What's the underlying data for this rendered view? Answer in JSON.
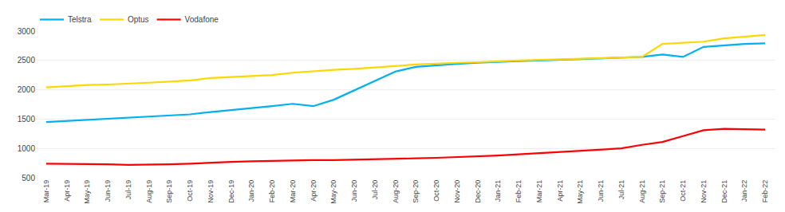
{
  "chart_data": {
    "type": "line",
    "categories": [
      "Mar-19",
      "Apr-19",
      "May-19",
      "Jun-19",
      "Jul-19",
      "Aug-19",
      "Sep-19",
      "Oct-19",
      "Nov-19",
      "Dec-19",
      "Jan-20",
      "Feb-20",
      "Mar-20",
      "Apr-20",
      "May-20",
      "Jun-20",
      "Jul-20",
      "Aug-20",
      "Sep-20",
      "Oct-20",
      "Nov-20",
      "Dec-20",
      "Jan-21",
      "Feb-21",
      "Mar-21",
      "Apr-21",
      "May-21",
      "Jun-21",
      "Jul-21",
      "Aug-21",
      "Sep-21",
      "Oct-21",
      "Nov-21",
      "Dec-21",
      "Jan-22",
      "Feb-22"
    ],
    "series": [
      {
        "name": "Telstra",
        "color": "#00B0F0",
        "values": [
          1450,
          1470,
          1490,
          1500,
          1520,
          1540,
          1560,
          1580,
          1620,
          1650,
          1680,
          1720,
          1760,
          1720,
          1830,
          1990,
          2160,
          2310,
          2390,
          2420,
          2440,
          2460,
          2480,
          2490,
          2500,
          2510,
          2520,
          2530,
          2545,
          2560,
          2600,
          2560,
          2730,
          2760,
          2780,
          2790
        ]
      },
      {
        "name": "Optus",
        "color": "#FFD700",
        "values": [
          2040,
          2060,
          2080,
          2090,
          2100,
          2120,
          2140,
          2160,
          2200,
          2220,
          2230,
          2250,
          2290,
          2320,
          2340,
          2355,
          2375,
          2405,
          2430,
          2450,
          2460,
          2470,
          2490,
          2500,
          2510,
          2520,
          2530,
          2540,
          2550,
          2560,
          2780,
          2800,
          2820,
          2875,
          2905,
          2935
        ]
      },
      {
        "name": "Vodafone",
        "color": "#FF0000",
        "values": [
          740,
          740,
          740,
          730,
          720,
          720,
          730,
          740,
          760,
          770,
          780,
          790,
          800,
          800,
          800,
          805,
          810,
          820,
          830,
          840,
          850,
          860,
          880,
          900,
          920,
          940,
          960,
          980,
          1000,
          1060,
          1110,
          1210,
          1310,
          1335,
          1330,
          1320
        ]
      }
    ],
    "ylim": [
      500,
      3000
    ],
    "yticks": [
      500,
      1000,
      1500,
      2000,
      2500,
      3000
    ],
    "grid": true,
    "legend": "upper left"
  }
}
